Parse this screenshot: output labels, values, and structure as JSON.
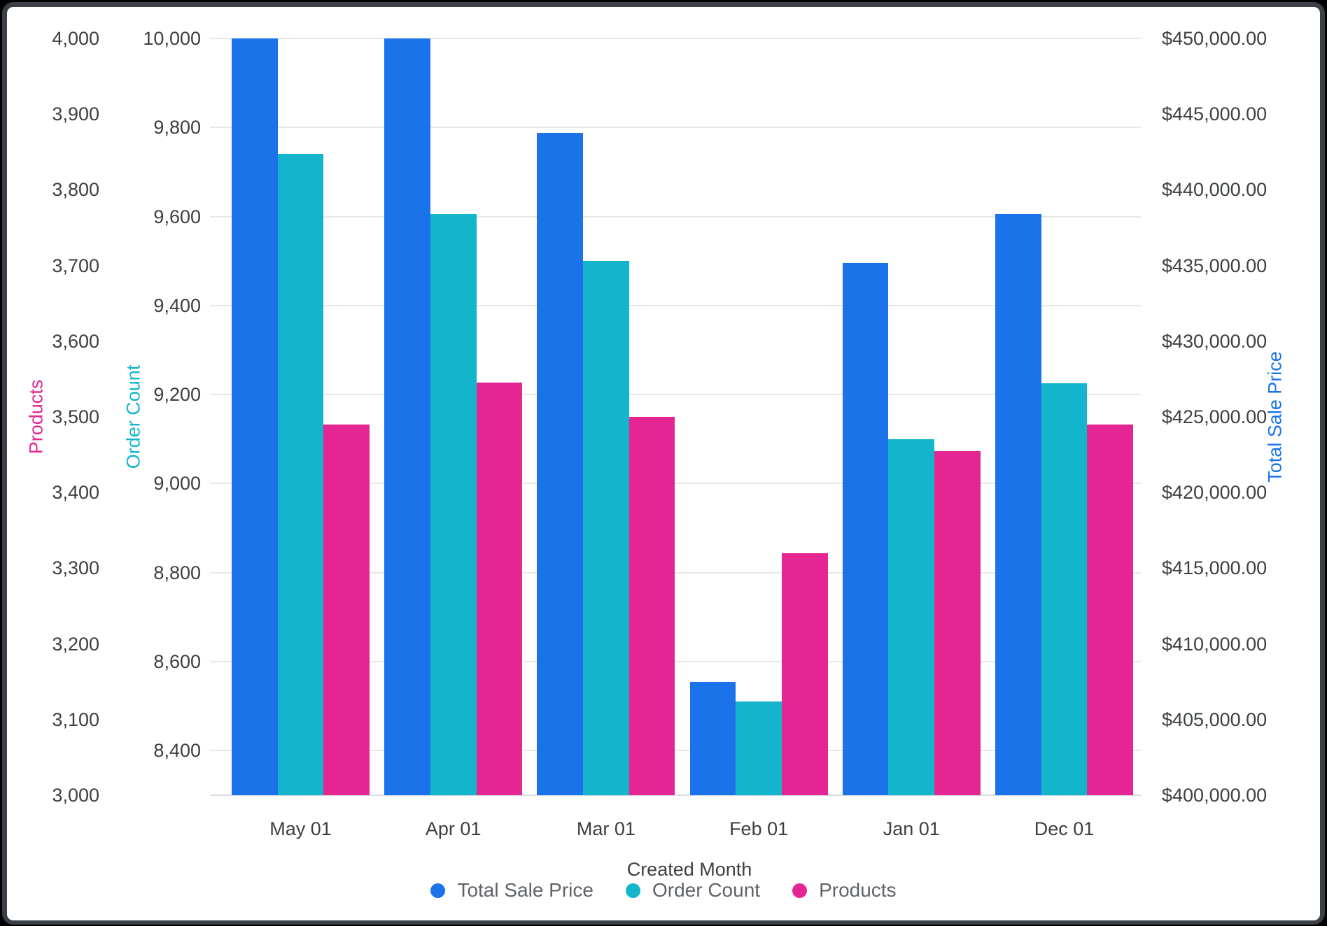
{
  "chart_data": {
    "type": "bar",
    "title": "",
    "xlabel": "Created Month",
    "categories": [
      "May 01",
      "Apr 01",
      "Mar 01",
      "Feb 01",
      "Jan 01",
      "Dec 01"
    ],
    "series": [
      {
        "name": "Total Sale Price",
        "axis": "price",
        "color": "#1a73e8",
        "values": [
          450000,
          450000,
          443750,
          407500,
          435150,
          438400
        ]
      },
      {
        "name": "Order Count",
        "axis": "order",
        "color": "#12b5cb",
        "values": [
          9740,
          9605,
          9500,
          8510,
          9100,
          9225
        ]
      },
      {
        "name": "Products",
        "axis": "products",
        "color": "#e52592",
        "values": [
          3490,
          3545,
          3500,
          3320,
          3455,
          3490
        ]
      }
    ],
    "axes": {
      "products": {
        "title": "Products",
        "color": "#e52592",
        "min": 3000,
        "max": 4000,
        "tick_labels": [
          "4,000",
          "3,900",
          "3,800",
          "3,700",
          "3,600",
          "3,500",
          "3,400",
          "3,300",
          "3,200",
          "3,100",
          "3,000"
        ]
      },
      "order": {
        "title": "Order Count",
        "color": "#12b5cb",
        "min": 8300,
        "max": 10000,
        "gridlines": true,
        "tick_labels": [
          "10,000",
          "9,800",
          "9,600",
          "9,400",
          "9,200",
          "9,000",
          "8,800",
          "8,600",
          "8,400"
        ]
      },
      "price": {
        "title": "Total Sale Price",
        "color": "#1a73e8",
        "min": 400000,
        "max": 450000,
        "tick_labels": [
          "$450,000.00",
          "$445,000.00",
          "$440,000.00",
          "$435,000.00",
          "$430,000.00",
          "$425,000.00",
          "$420,000.00",
          "$415,000.00",
          "$410,000.00",
          "$405,000.00",
          "$400,000.00"
        ]
      }
    },
    "legend": [
      "Total Sale Price",
      "Order Count",
      "Products"
    ],
    "grid_color": "#e7e7e7",
    "baseline_color": "#dadce0",
    "tick_text_color": "#3c4043",
    "legend_text_color": "#5f6368"
  }
}
